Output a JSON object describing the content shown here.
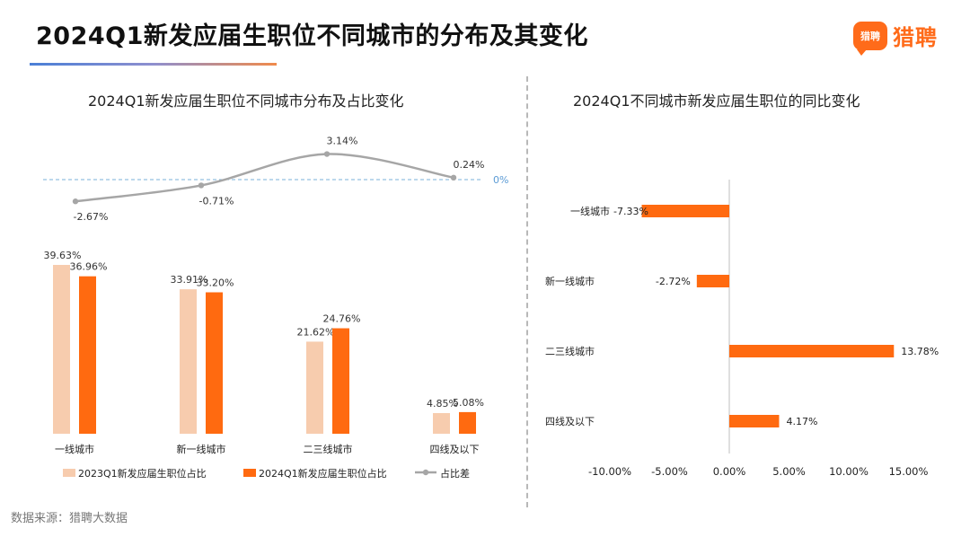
{
  "page": {
    "title": "2024Q1新发应届生职位不同城市的分布及其变化",
    "logo_badge": "猎聘",
    "logo_text": "猎聘",
    "source": "数据来源：猎聘大数据"
  },
  "colors": {
    "bar_2023": "#f7ccae",
    "bar_2024": "#ff6a10",
    "diff_line": "#a6a6a6",
    "zero_line": "#7ab0d8",
    "axis": "#bfbfbf"
  },
  "chart_data": [
    {
      "type": "bar",
      "title": "2024Q1新发应届生职位不同城市分布及占比变化",
      "categories": [
        "一线城市",
        "新一线城市",
        "二三线城市",
        "四线及以下"
      ],
      "series": [
        {
          "name": "2023Q1新发应届生职位占比",
          "values": [
            39.63,
            33.91,
            21.62,
            4.85
          ],
          "labels": [
            "39.63%",
            "33.91%",
            "21.62%",
            "4.85%"
          ]
        },
        {
          "name": "2024Q1新发应届生职位占比",
          "values": [
            36.96,
            33.2,
            24.76,
            5.08
          ],
          "labels": [
            "36.96%",
            "33.20%",
            "24.76%",
            "5.08%"
          ]
        }
      ],
      "line_series": {
        "name": "占比差",
        "values": [
          -2.67,
          -0.71,
          3.14,
          0.24
        ],
        "labels": [
          "-2.67%",
          "-0.71%",
          "3.14%",
          "0.24%"
        ]
      },
      "reference_label": "0%",
      "legend_position": "bottom"
    },
    {
      "type": "bar",
      "orientation": "horizontal",
      "title": "2024Q1不同城市新发应届生职位的同比变化",
      "categories": [
        "一线城市",
        "新一线城市",
        "二三线城市",
        "四线及以下"
      ],
      "values": [
        -7.33,
        -2.72,
        13.78,
        4.17
      ],
      "labels": [
        "-7.33%",
        "-2.72%",
        "13.78%",
        "4.17%"
      ],
      "xlim": [
        -10,
        15
      ],
      "ticks": [
        -10,
        -5,
        0,
        5,
        10,
        15
      ],
      "tick_labels": [
        "-10.00%",
        "-5.00%",
        "0.00%",
        "5.00%",
        "10.00%",
        "15.00%"
      ]
    }
  ]
}
